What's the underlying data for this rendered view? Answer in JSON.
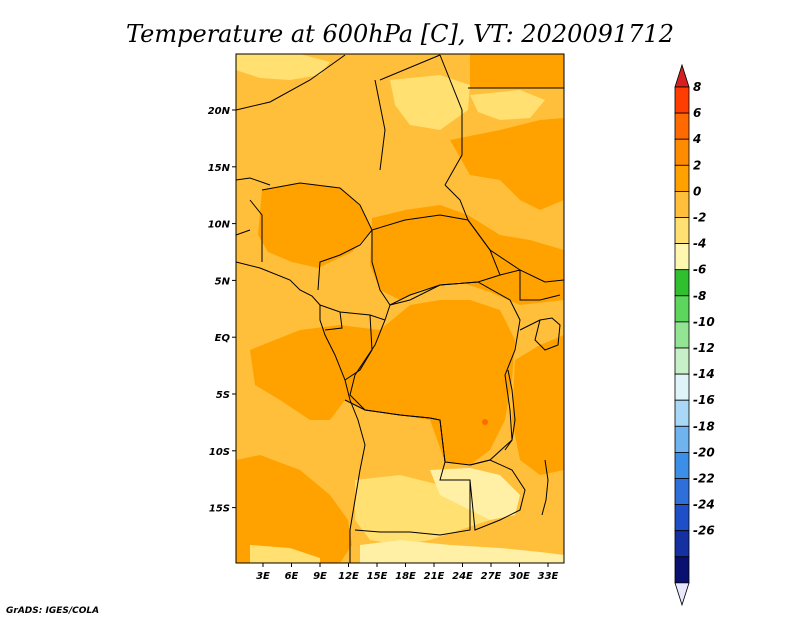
{
  "title": "Temperature at 600hPa [C], VT: 2020091712",
  "credit": "GrADS: IGES/COLA",
  "map": {
    "x_ticks": [
      "3E",
      "6E",
      "9E",
      "12E",
      "15E",
      "18E",
      "21E",
      "24E",
      "27E",
      "30E",
      "33E"
    ],
    "y_ticks": [
      "20N",
      "15N",
      "10N",
      "5N",
      "EQ",
      "5S",
      "10S",
      "15S"
    ],
    "colors": {
      "very_light": "#fff0a6",
      "light": "#ffe070",
      "mid": "#ffbf3a",
      "dark": "#ffa200",
      "orange_red": "#ff6a00",
      "boundary": "#000000"
    }
  },
  "colorbar": {
    "labels": [
      "8",
      "6",
      "4",
      "2",
      "0",
      "-2",
      "-4",
      "-6",
      "-8",
      "-10",
      "-12",
      "-14",
      "-16",
      "-18",
      "-20",
      "-22",
      "-24",
      "-26"
    ],
    "colors": [
      "#ff3d00",
      "#ff6a00",
      "#ff8c00",
      "#ffa200",
      "#ffbf3a",
      "#ffe070",
      "#fff6b0",
      "#2fbf2f",
      "#5cd65c",
      "#93e493",
      "#c8f0c8",
      "#dff4f8",
      "#a8d8f5",
      "#6fb4ee",
      "#3c8fe6",
      "#2f6fd9",
      "#1f4fc8",
      "#1530a0",
      "#0a1070"
    ],
    "upper_tip_color": "#d62020",
    "lower_tip_color": "#e8e8ff"
  }
}
